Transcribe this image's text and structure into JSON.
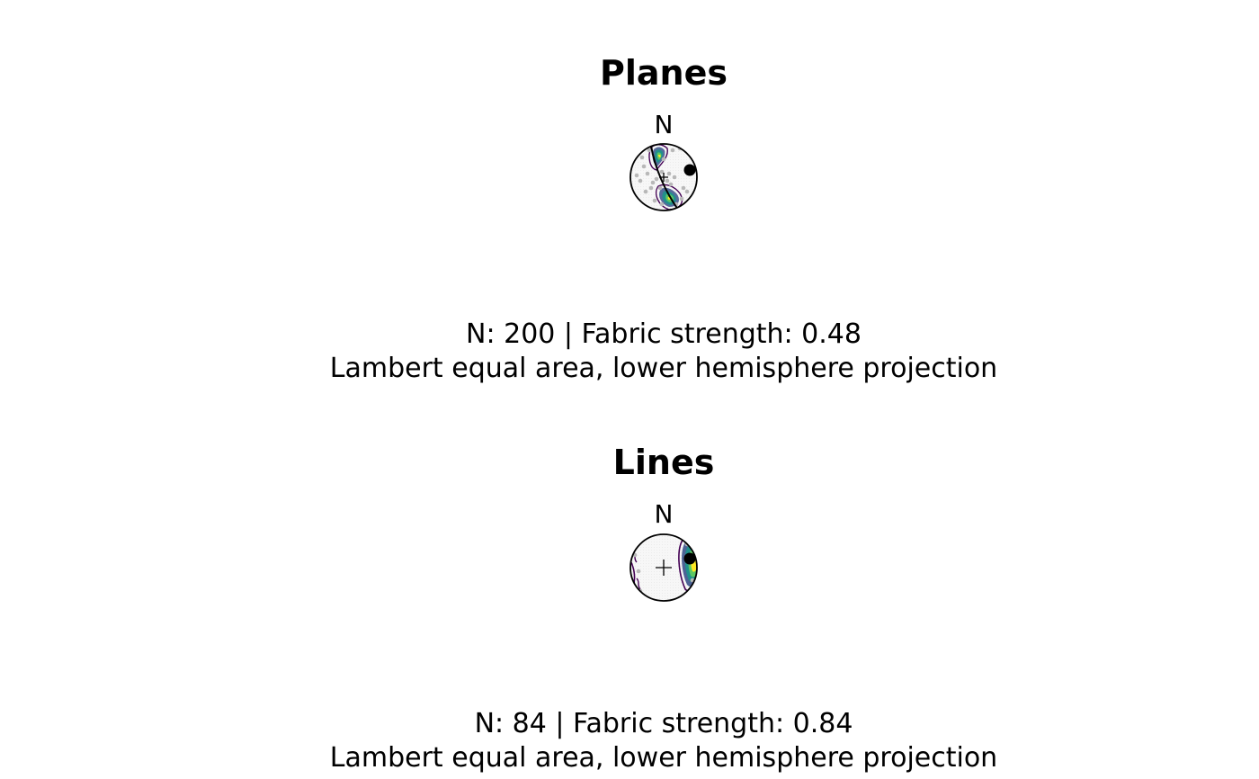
{
  "colors": {
    "background": "#ffffff",
    "points": "#b8b8b8",
    "mean": "#000000",
    "contours": [
      "#440154",
      "#3b528b",
      "#21908c",
      "#5dc863",
      "#fde725"
    ]
  },
  "chart_data": [
    {
      "type": "scatter",
      "subtype": "stereonet",
      "title": "Planes",
      "north_label": "N",
      "n_label": "N: 200 | Fabric strength: 0.48",
      "projection_label": "Lambert equal area, lower hemisphere projection",
      "legend": "none"
    },
    {
      "type": "scatter",
      "subtype": "stereonet",
      "title": "Lines",
      "north_label": "N",
      "n_label": "N: 84 | Fabric strength: 0.84",
      "projection_label": "Lambert equal area, lower hemisphere projection",
      "legend": "none"
    }
  ]
}
